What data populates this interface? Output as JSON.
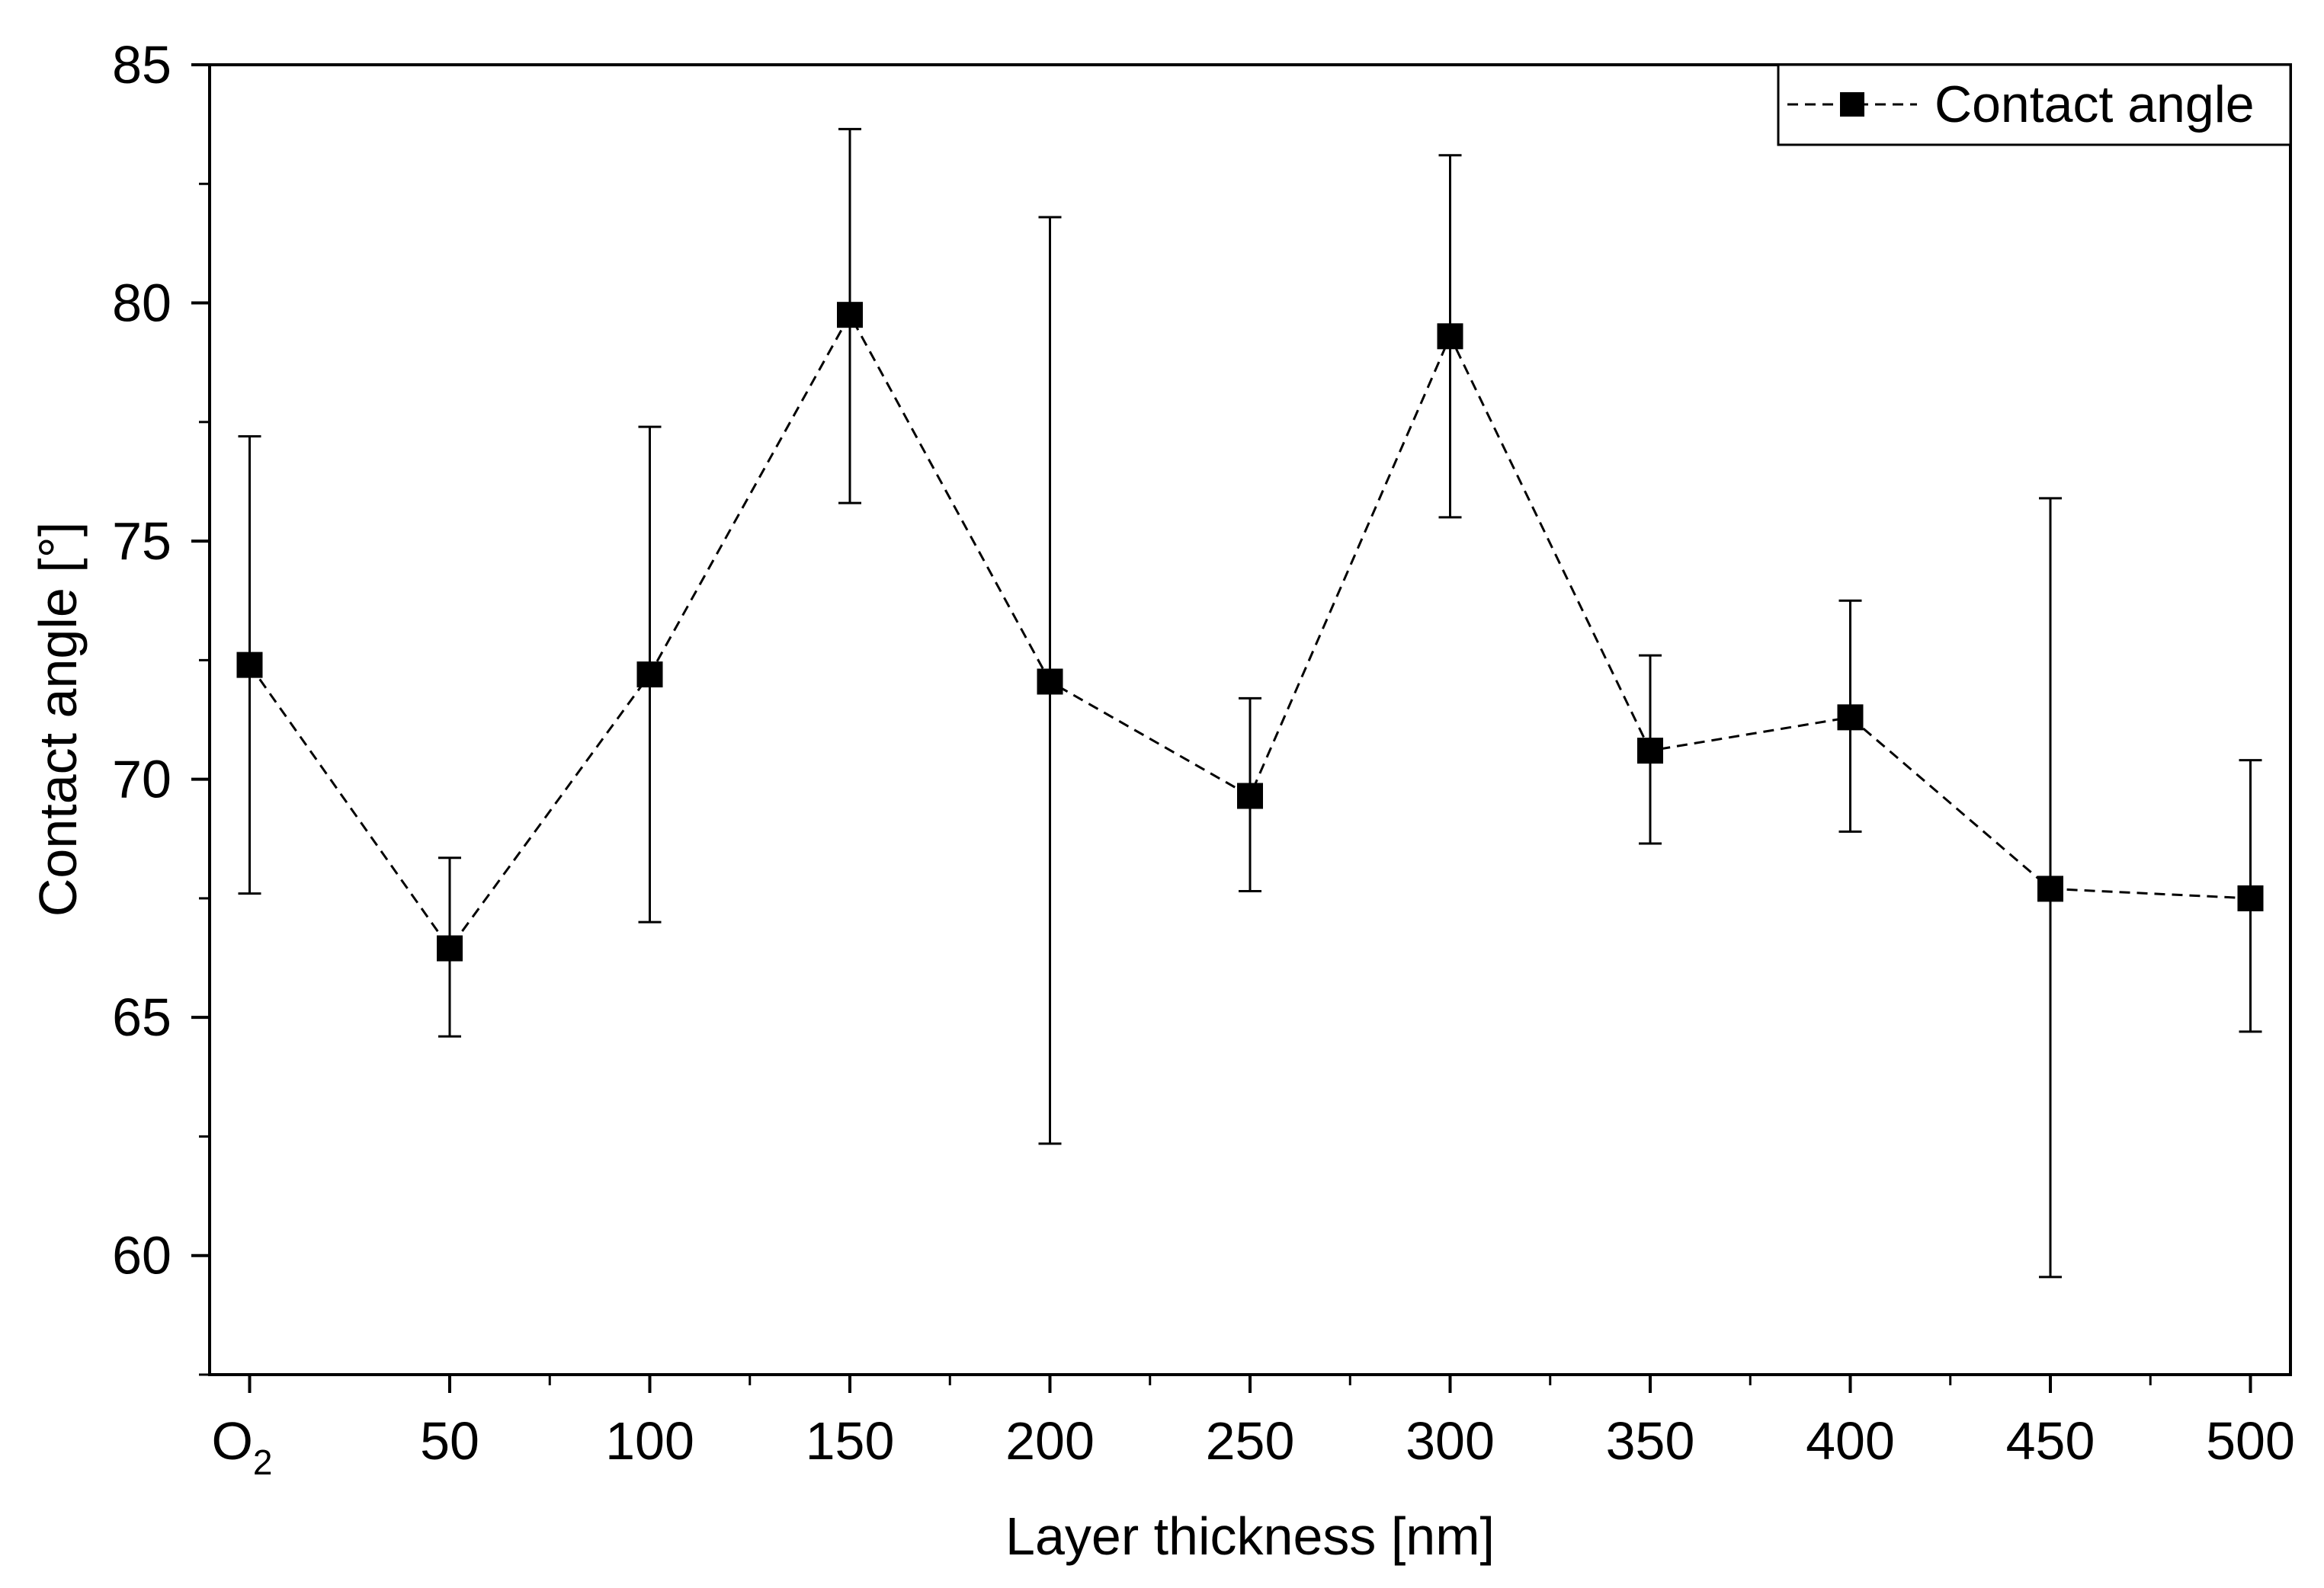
{
  "chart_data": {
    "type": "scatter",
    "title": "",
    "xlabel": "Layer thickness [nm]",
    "ylabel": "Contact angle [°]",
    "xlim": [
      -10,
      510
    ],
    "ylim": [
      57.5,
      85
    ],
    "legend": {
      "label": "Contact angle",
      "position": "top-right"
    },
    "x_ticks": [
      {
        "x": 0,
        "label": "O",
        "sub": "2"
      },
      {
        "x": 50,
        "label": "50"
      },
      {
        "x": 100,
        "label": "100"
      },
      {
        "x": 150,
        "label": "150"
      },
      {
        "x": 200,
        "label": "200"
      },
      {
        "x": 250,
        "label": "250"
      },
      {
        "x": 300,
        "label": "300"
      },
      {
        "x": 350,
        "label": "350"
      },
      {
        "x": 400,
        "label": "400"
      },
      {
        "x": 450,
        "label": "450"
      },
      {
        "x": 500,
        "label": "500"
      }
    ],
    "y_ticks": [
      60,
      65,
      70,
      75,
      80,
      85
    ],
    "series": [
      {
        "name": "Contact angle",
        "marker": "square",
        "line_style": "dashed",
        "color": "#000000",
        "points": [
          {
            "x": 0,
            "y": 72.4,
            "err_low": 67.6,
            "err_high": 77.2
          },
          {
            "x": 50,
            "y": 66.45,
            "err_low": 64.6,
            "err_high": 68.35
          },
          {
            "x": 100,
            "y": 72.2,
            "err_low": 67.0,
            "err_high": 77.4
          },
          {
            "x": 150,
            "y": 79.75,
            "err_low": 75.8,
            "err_high": 83.65
          },
          {
            "x": 200,
            "y": 72.05,
            "err_low": 62.35,
            "err_high": 81.8
          },
          {
            "x": 250,
            "y": 69.65,
            "err_low": 67.65,
            "err_high": 71.7
          },
          {
            "x": 300,
            "y": 79.3,
            "err_low": 75.5,
            "err_high": 83.1
          },
          {
            "x": 350,
            "y": 70.6,
            "err_low": 68.65,
            "err_high": 72.6
          },
          {
            "x": 400,
            "y": 71.3,
            "err_low": 68.9,
            "err_high": 73.75
          },
          {
            "x": 450,
            "y": 67.7,
            "err_low": 59.55,
            "err_high": 75.9
          },
          {
            "x": 500,
            "y": 67.5,
            "err_low": 64.7,
            "err_high": 70.4
          }
        ]
      }
    ]
  }
}
